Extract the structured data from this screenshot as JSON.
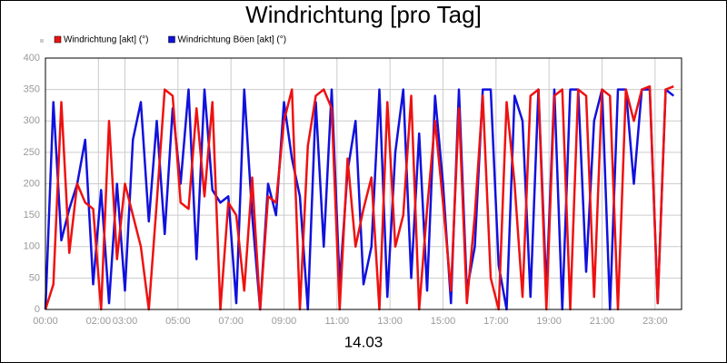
{
  "chart_data": {
    "type": "line",
    "title": "Windrichtung [pro Tag]",
    "xlabel": "14.03",
    "x": [
      0,
      0.3,
      0.6,
      0.9,
      1.2,
      1.5,
      1.8,
      2.1,
      2.4,
      2.7,
      3,
      3.3,
      3.6,
      3.9,
      4.2,
      4.5,
      4.8,
      5.1,
      5.4,
      5.7,
      6,
      6.3,
      6.6,
      6.9,
      7.2,
      7.5,
      7.8,
      8.1,
      8.4,
      8.7,
      9,
      9.3,
      9.6,
      9.9,
      10.2,
      10.5,
      10.8,
      11.1,
      11.4,
      11.7,
      12,
      12.3,
      12.6,
      12.9,
      13.2,
      13.5,
      13.8,
      14.1,
      14.4,
      14.7,
      15,
      15.3,
      15.6,
      15.9,
      16.2,
      16.5,
      16.8,
      17.1,
      17.4,
      17.7,
      18,
      18.3,
      18.6,
      18.9,
      19.2,
      19.5,
      19.8,
      20.1,
      20.4,
      20.7,
      21,
      21.3,
      21.6,
      21.9,
      22.2,
      22.5,
      22.8,
      23.1,
      23.4,
      23.7
    ],
    "series": [
      {
        "name": "Windrichtung [akt] (°)",
        "color": "#ee1111",
        "values": [
          0,
          40,
          330,
          90,
          200,
          170,
          160,
          0,
          300,
          80,
          200,
          150,
          100,
          0,
          170,
          350,
          340,
          170,
          160,
          320,
          180,
          330,
          0,
          170,
          150,
          30,
          210,
          0,
          180,
          170,
          300,
          350,
          0,
          260,
          340,
          350,
          320,
          0,
          240,
          100,
          160,
          210,
          0,
          330,
          100,
          150,
          340,
          0,
          160,
          300,
          170,
          30,
          320,
          10,
          150,
          340,
          50,
          0,
          330,
          200,
          20,
          340,
          350,
          0,
          340,
          350,
          0,
          350,
          340,
          20,
          350,
          340,
          0,
          350,
          300,
          350,
          355,
          10,
          350,
          355
        ]
      },
      {
        "name": "Windrichtung Böen [akt] (°)",
        "color": "#1111dd",
        "values": [
          0,
          330,
          110,
          160,
          200,
          270,
          40,
          190,
          10,
          200,
          30,
          270,
          330,
          140,
          300,
          120,
          320,
          200,
          350,
          80,
          350,
          190,
          170,
          180,
          10,
          350,
          150,
          0,
          200,
          150,
          330,
          240,
          180,
          0,
          330,
          100,
          350,
          40,
          220,
          300,
          40,
          100,
          350,
          20,
          250,
          350,
          50,
          280,
          30,
          340,
          200,
          10,
          350,
          30,
          100,
          350,
          350,
          70,
          0,
          340,
          300,
          20,
          350,
          30,
          350,
          0,
          350,
          350,
          60,
          300,
          350,
          0,
          350,
          350,
          200,
          350,
          350,
          10,
          350,
          340
        ]
      }
    ],
    "xlim": [
      0,
      24
    ],
    "xticks": [
      {
        "value": 0,
        "label": "00:00"
      },
      {
        "value": 2,
        "label": "02:00"
      },
      {
        "value": 3,
        "label": "03:00"
      },
      {
        "value": 5,
        "label": "05:00"
      },
      {
        "value": 7,
        "label": "07:00"
      },
      {
        "value": 9,
        "label": "09:00"
      },
      {
        "value": 11,
        "label": "11:00"
      },
      {
        "value": 13,
        "label": "13:00"
      },
      {
        "value": 15,
        "label": "15:00"
      },
      {
        "value": 17,
        "label": "17:00"
      },
      {
        "value": 19,
        "label": "19:00"
      },
      {
        "value": 21,
        "label": "21:00"
      },
      {
        "value": 23,
        "label": "23:00"
      }
    ],
    "ylim": [
      0,
      400
    ],
    "yticks": [
      0,
      50,
      100,
      150,
      200,
      250,
      300,
      350,
      400
    ],
    "grid": true
  }
}
